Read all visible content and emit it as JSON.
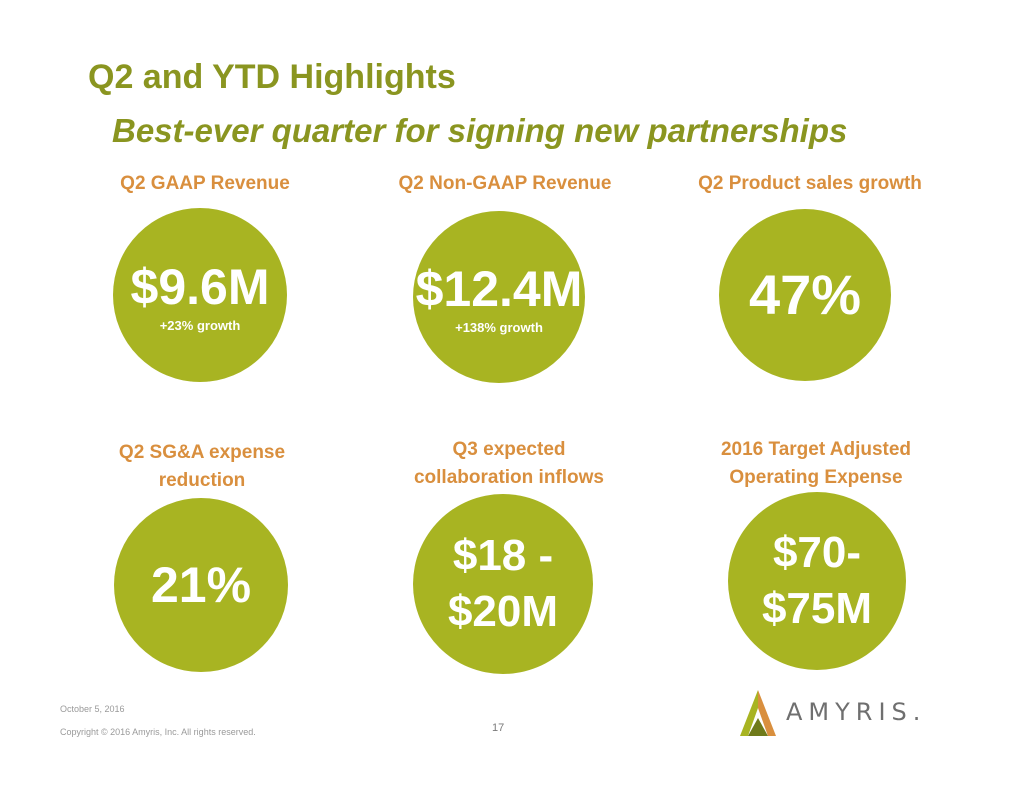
{
  "slide": {
    "title": "Q2 and YTD Highlights",
    "subtitle": "Best-ever quarter for signing new partnerships"
  },
  "metrics": [
    {
      "label": "Q2 GAAP Revenue",
      "value": "$9.6M",
      "note": "+23% growth"
    },
    {
      "label": "Q2 Non-GAAP Revenue",
      "value": "$12.4M",
      "note": "+138% growth"
    },
    {
      "label": "Q2 Product sales growth",
      "value": "47%"
    },
    {
      "label_line1": "Q2 SG&A expense",
      "label_line2": "reduction",
      "value": "21%"
    },
    {
      "label_line1": "Q3 expected",
      "label_line2": "collaboration inflows",
      "value_line1": "$18 -",
      "value_line2": "$20M"
    },
    {
      "label_line1": "2016 Target Adjusted",
      "label_line2": "Operating Expense",
      "value_line1": "$70-",
      "value_line2": "$75M"
    }
  ],
  "footer": {
    "date": "October 5, 2016",
    "copyright": "Copyright © 2016 Amyris, Inc. All rights reserved.",
    "page_number": "17"
  },
  "logo": {
    "text": "AMYRIS",
    "mark": "."
  },
  "colors": {
    "accent_green": "#a8b422",
    "title_green": "#8a9520",
    "label_orange": "#d98f3e"
  }
}
